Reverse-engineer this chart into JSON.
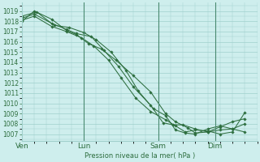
{
  "bg_color": "#ceeeed",
  "grid_color": "#a0d0cc",
  "line_color": "#2d6e3e",
  "ylabel": "Pression niveau de la mer( hPa )",
  "ylim": [
    1006.3,
    1019.8
  ],
  "yticks": [
    1007,
    1008,
    1009,
    1010,
    1011,
    1012,
    1013,
    1014,
    1015,
    1016,
    1017,
    1018,
    1019
  ],
  "xtick_labels": [
    "Ven",
    "Lun",
    "Sam",
    "Dim"
  ],
  "lines": [
    {
      "x": [
        0.0,
        0.5,
        1.2,
        1.8,
        2.2,
        2.7,
        3.2,
        3.8,
        4.5,
        5.2,
        5.8,
        6.2,
        6.7,
        7.0,
        7.5,
        8.0,
        8.5,
        9.0
      ],
      "y": [
        1018.0,
        1019.0,
        1018.2,
        1017.1,
        1016.7,
        1015.8,
        1015.3,
        1014.2,
        1012.7,
        1011.1,
        1009.0,
        1008.2,
        1007.6,
        1007.1,
        1007.2,
        1007.4,
        1007.5,
        1008.0
      ]
    },
    {
      "x": [
        0.0,
        0.5,
        1.2,
        1.8,
        2.2,
        2.8,
        3.3,
        3.9,
        4.5,
        5.2,
        5.7,
        6.1,
        6.5,
        7.0,
        7.5,
        8.0,
        8.5,
        9.0
      ],
      "y": [
        1018.3,
        1018.7,
        1017.8,
        1017.2,
        1016.8,
        1016.5,
        1015.2,
        1013.6,
        1011.6,
        1009.8,
        1008.1,
        1007.9,
        1007.9,
        1007.5,
        1007.2,
        1007.7,
        1008.2,
        1008.5
      ]
    },
    {
      "x": [
        0.0,
        0.5,
        1.2,
        1.8,
        2.4,
        2.9,
        3.5,
        4.0,
        4.6,
        5.2,
        5.8,
        6.2,
        6.6,
        7.0,
        7.5,
        8.0,
        8.5,
        9.0
      ],
      "y": [
        1018.1,
        1018.5,
        1017.5,
        1017.0,
        1016.4,
        1015.6,
        1014.2,
        1012.5,
        1010.5,
        1009.2,
        1008.4,
        1007.8,
        1007.2,
        1007.4,
        1007.3,
        1007.0,
        1007.2,
        1009.1
      ]
    },
    {
      "x": [
        0.0,
        0.6,
        1.3,
        1.9,
        2.5,
        3.0,
        3.6,
        4.2,
        4.7,
        5.3,
        5.8,
        6.2,
        6.6,
        7.0,
        7.5,
        8.0,
        8.5,
        9.0
      ],
      "y": [
        1018.5,
        1018.9,
        1017.6,
        1017.4,
        1016.9,
        1016.2,
        1015.0,
        1013.2,
        1011.2,
        1009.5,
        1008.8,
        1007.4,
        1007.1,
        1007.0,
        1007.5,
        1007.8,
        1007.5,
        1007.2
      ]
    }
  ],
  "xtick_x": [
    0.0,
    2.5,
    5.5,
    7.8
  ],
  "vline_x": [
    2.5,
    5.5,
    7.8
  ],
  "xlim": [
    0.0,
    9.5
  ]
}
